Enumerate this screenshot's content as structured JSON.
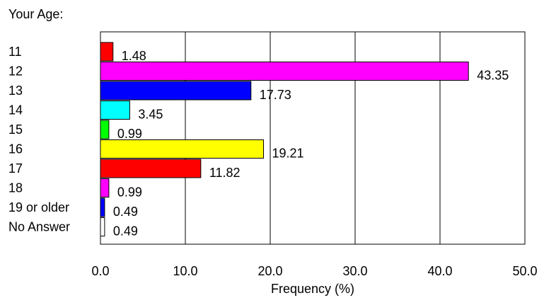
{
  "chart_data": {
    "type": "bar",
    "orientation": "horizontal",
    "title": "Your Age:",
    "xlabel": "Frequency (%)",
    "ylabel": "",
    "xlim": [
      0,
      50
    ],
    "xticks": [
      "0.0",
      "10.0",
      "20.0",
      "30.0",
      "40.0",
      "50.0"
    ],
    "grid": "vertical",
    "categories": [
      "11",
      "12",
      "13",
      "14",
      "15",
      "16",
      "17",
      "18",
      "19 or older",
      "No Answer"
    ],
    "values": [
      1.48,
      43.35,
      17.73,
      3.45,
      0.99,
      19.21,
      11.82,
      0.99,
      0.49,
      0.49
    ],
    "value_labels": [
      "1.48",
      "43.35",
      "17.73",
      "3.45",
      "0.99",
      "19.21",
      "11.82",
      "0.99",
      "0.49",
      "0.49"
    ],
    "colors": [
      "#ff0000",
      "#ff00ff",
      "#0000ff",
      "#00ffff",
      "#00ff00",
      "#ffff00",
      "#ff0000",
      "#ff00ff",
      "#0000ff",
      "#ffffff"
    ]
  }
}
